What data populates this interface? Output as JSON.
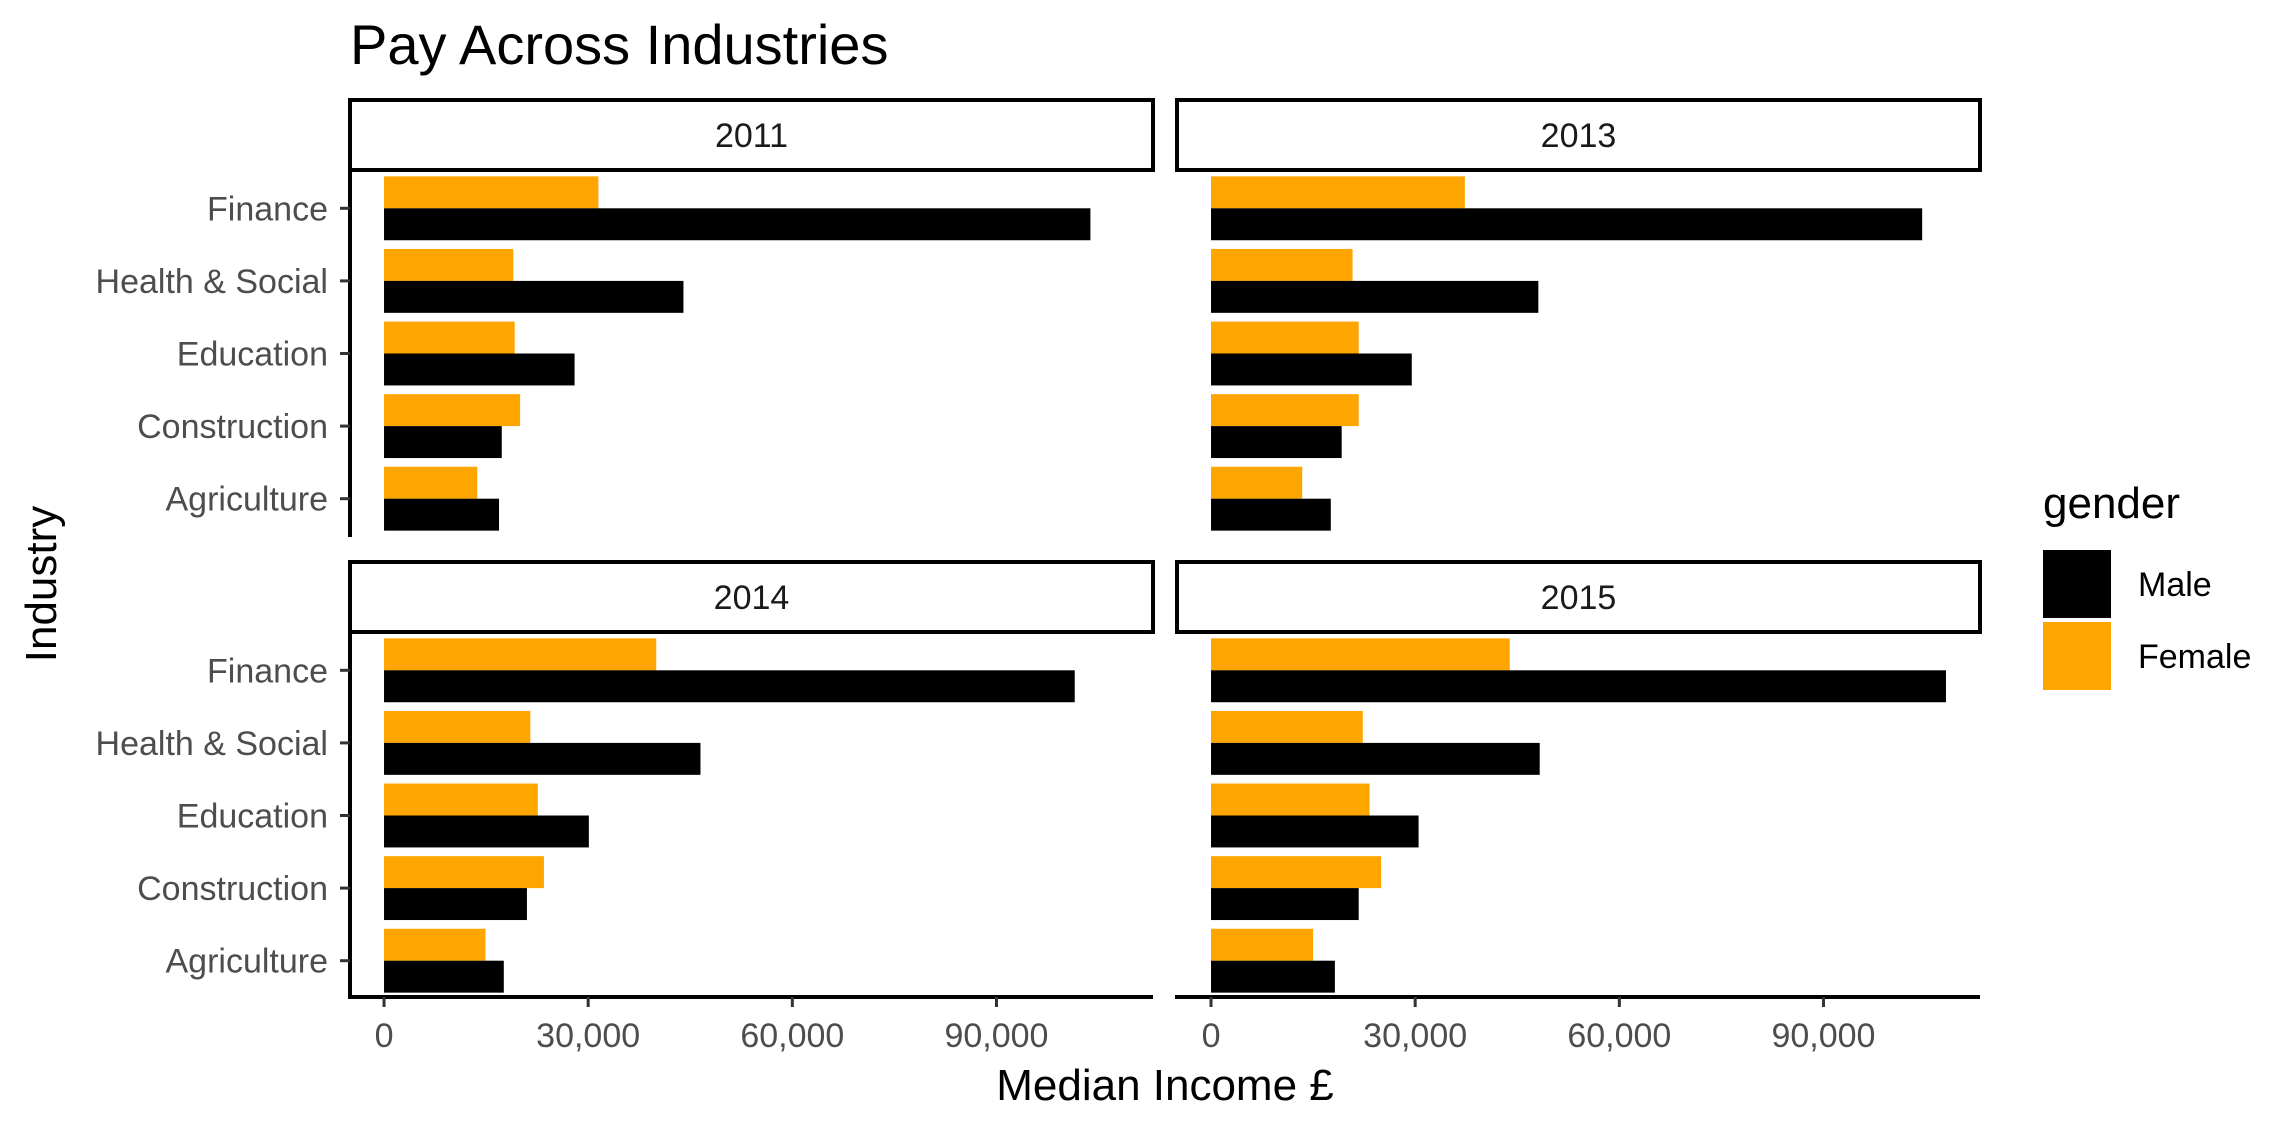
{
  "chart_data": {
    "type": "bar",
    "orientation": "horizontal",
    "title": "Pay Across Industries",
    "xlabel": "Median Income £",
    "ylabel": "Industry",
    "xlim": [
      -5000,
      113000
    ],
    "x_ticks": [
      0,
      30000,
      60000,
      90000
    ],
    "x_tick_labels": [
      "0",
      "30,000",
      "60,000",
      "90,000"
    ],
    "categories": [
      "Finance",
      "Health & Social",
      "Education",
      "Construction",
      "Agriculture"
    ],
    "legend": {
      "title": "gender",
      "placement": "right",
      "entries": [
        {
          "name": "Male",
          "color": "#000000"
        },
        {
          "name": "Female",
          "color": "#FFA500"
        }
      ]
    },
    "panels": [
      {
        "label": "2011",
        "series": [
          {
            "name": "Female",
            "values": [
              31500,
              19000,
              19200,
              20000,
              13700
            ]
          },
          {
            "name": "Male",
            "values": [
              103800,
              44000,
              28000,
              17300,
              16900
            ]
          }
        ]
      },
      {
        "label": "2013",
        "series": [
          {
            "name": "Female",
            "values": [
              37300,
              20800,
              21700,
              21700,
              13400
            ]
          },
          {
            "name": "Male",
            "values": [
              104500,
              48100,
              29500,
              19200,
              17600
            ]
          }
        ]
      },
      {
        "label": "2014",
        "series": [
          {
            "name": "Female",
            "values": [
              40000,
              21500,
              22600,
              23500,
              14900
            ]
          },
          {
            "name": "Male",
            "values": [
              101500,
              46500,
              30100,
              21000,
              17600
            ]
          }
        ]
      },
      {
        "label": "2015",
        "series": [
          {
            "name": "Female",
            "values": [
              43900,
              22300,
              23300,
              25000,
              15000
            ]
          },
          {
            "name": "Male",
            "values": [
              108000,
              48300,
              30500,
              21700,
              18200
            ]
          }
        ]
      }
    ]
  }
}
